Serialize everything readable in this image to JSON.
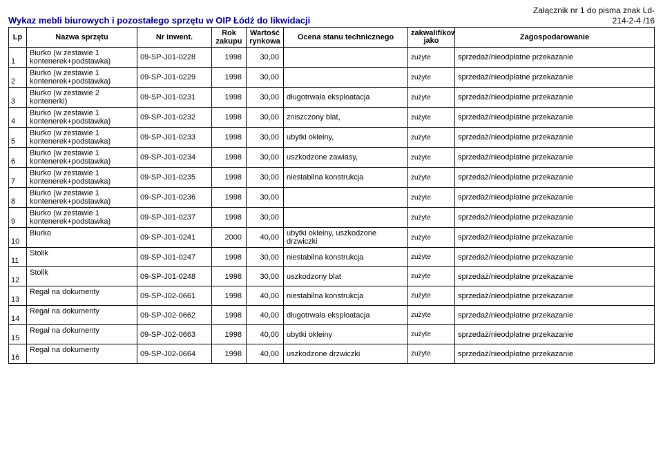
{
  "annex": {
    "line1": "Załącznik nr 1 do pisma znak Ld-",
    "line2": "214-2-4 /16"
  },
  "title": "Wykaz mebli biurowych i pozostałego sprzętu w OIP Łódź do likwidacji",
  "headers": {
    "lp": "Lp",
    "name": "Nazwa sprzętu",
    "inv": "Nr inwent.",
    "year": "Rok zakupu",
    "val": "Wartość rynkowa",
    "state": "Ocena stanu technicznego",
    "qual": "zakwalifikowano jako",
    "disp": "Zagospodarowanie"
  },
  "rows": [
    {
      "lp": "1",
      "name": "Biurko (w zestawie 1 kontenerek+podstawka)",
      "inv": "09-SP-J01-0228",
      "year": "1998",
      "val": "30,00",
      "state": "",
      "qual": "zużyte",
      "disp": "sprzedaż/nieodpłatne przekazanie",
      "tall": true
    },
    {
      "lp": "2",
      "name": "Biurko (w zestawie 1 kontenerek+podstawka)",
      "inv": "09-SP-J01-0229",
      "year": "1998",
      "val": "30,00",
      "state": "",
      "qual": "zużyte",
      "disp": "sprzedaż/nieodpłatne przekazanie",
      "tall": true
    },
    {
      "lp": "3",
      "name": "Biurko (w zestawie 2 kontenerki)",
      "inv": "09-SP-J01-0231",
      "year": "1998",
      "val": "30,00",
      "state": "długotrwała eksploatacja",
      "qual": "zużyte",
      "disp": "sprzedaż/nieodpłatne przekazanie",
      "tall": true
    },
    {
      "lp": "4",
      "name": "Biurko (w zestawie 1 kontenerek+podstawka)",
      "inv": "09-SP-J01-0232",
      "year": "1998",
      "val": "30,00",
      "state": "zniszczony blat,",
      "qual": "zużyte",
      "disp": "sprzedaż/nieodpłatne przekazanie",
      "tall": true
    },
    {
      "lp": "5",
      "name": "Biurko (w zestawie 1 kontenerek+podstawka)",
      "inv": "09-SP-J01-0233",
      "year": "1998",
      "val": "30,00",
      "state": "ubytki okleiny,",
      "qual": "zużyte",
      "disp": "sprzedaż/nieodpłatne przekazanie",
      "tall": true
    },
    {
      "lp": "6",
      "name": "Biurko (w zestawie 1 kontenerek+podstawka)",
      "inv": "09-SP-J01-0234",
      "year": "1998",
      "val": "30,00",
      "state": "uszkodzone zawiasy,",
      "qual": "zużyte",
      "disp": "sprzedaż/nieodpłatne przekazanie",
      "tall": true
    },
    {
      "lp": "7",
      "name": "Biurko (w zestawie 1 kontenerek+podstawka)",
      "inv": "09-SP-J01-0235",
      "year": "1998",
      "val": "30,00",
      "state": "niestabilna konstrukcja",
      "qual": "zużyte",
      "disp": "sprzedaż/nieodpłatne przekazanie",
      "tall": true
    },
    {
      "lp": "8",
      "name": "Biurko (w zestawie 1 kontenerek+podstawka)",
      "inv": "09-SP-J01-0236",
      "year": "1998",
      "val": "30,00",
      "state": "",
      "qual": "zużyte",
      "disp": "sprzedaż/nieodpłatne przekazanie",
      "tall": true
    },
    {
      "lp": "9",
      "name": "Biurko (w zestawie 1 kontenerek+podstawka)",
      "inv": "09-SP-J01-0237",
      "year": "1998",
      "val": "30,00",
      "state": "",
      "qual": "zużyte",
      "disp": "sprzedaż/nieodpłatne przekazanie",
      "tall": true
    },
    {
      "lp": "10",
      "name": "Biurko",
      "inv": "09-SP-J01-0241",
      "year": "2000",
      "val": "40,00",
      "state": "ubytki okleiny, uszkodzone drzwiczki",
      "qual": "zużyte",
      "disp": "sprzedaż/nieodpłatne przekazanie",
      "tall": true
    },
    {
      "lp": "11",
      "name": "Stolik",
      "inv": "09-SP-J01-0247",
      "year": "1998",
      "val": "30,00",
      "state": "niestabilna konstrukcja",
      "qual": "zużyte",
      "disp": "sprzedaż/nieodpłatne przekazanie",
      "tall": true
    },
    {
      "lp": "12",
      "name": "Stolik",
      "inv": "09-SP-J01-0248",
      "year": "1998",
      "val": "30,00",
      "state": "uszkodzony blat",
      "qual": "zużyte",
      "disp": "sprzedaż/nieodpłatne przekazanie",
      "tall": true
    },
    {
      "lp": "13",
      "name": "Regał na dokumenty",
      "inv": "09-SP-J02-0661",
      "year": "1998",
      "val": "40,00",
      "state": "niestabilna konstrukcja",
      "qual": "zużyte",
      "disp": "sprzedaż/nieodpłatne przekazanie",
      "tall": true
    },
    {
      "lp": "14",
      "name": "Regał na dokumenty",
      "inv": "09-SP-J02-0662",
      "year": "1998",
      "val": "40,00",
      "state": "długotrwała eksploatacja",
      "qual": "zużyte",
      "disp": "sprzedaż/nieodpłatne przekazanie",
      "tall": true
    },
    {
      "lp": "15",
      "name": "Regał na dokumenty",
      "inv": "09-SP-J02-0663",
      "year": "1998",
      "val": "40,00",
      "state": "ubytki okleiny",
      "qual": "zużyte",
      "disp": "sprzedaż/nieodpłatne przekazanie",
      "tall": true
    },
    {
      "lp": "16",
      "name": "Regał na dokumenty",
      "inv": "09-SP-J02-0664",
      "year": "1998",
      "val": "40,00",
      "state": "uszkodzone drzwiczki",
      "qual": "zużyte",
      "disp": "sprzedaż/nieodpłatne przekazanie",
      "tall": true
    }
  ]
}
